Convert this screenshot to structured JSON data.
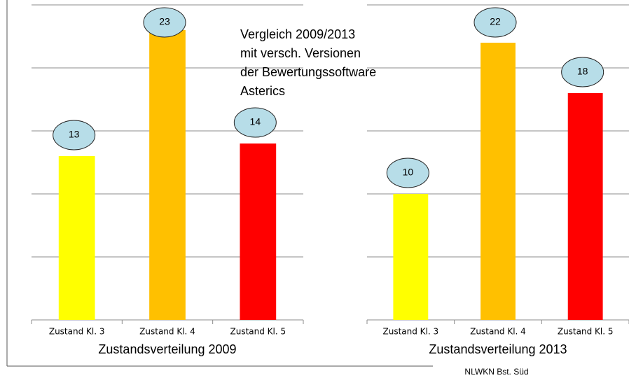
{
  "chart_data": [
    {
      "type": "bar",
      "title": "Zustandsverteilung 2009",
      "categories": [
        "Zustand Kl. 3",
        "Zustand Kl. 4",
        "Zustand Kl. 5"
      ],
      "values": [
        13,
        23,
        14
      ],
      "colors": [
        "#ffff00",
        "#ffc000",
        "#ff0000"
      ],
      "ylim": [
        0,
        25
      ],
      "yticks": [
        0,
        5,
        10,
        15,
        20,
        25
      ],
      "grid": true
    },
    {
      "type": "bar",
      "title": "Zustandsverteilung 2013",
      "categories": [
        "Zustand Kl. 3",
        "Zustand Kl. 4",
        "Zustand Kl. 5"
      ],
      "values": [
        10,
        22,
        18
      ],
      "colors": [
        "#ffff00",
        "#ffc000",
        "#ff0000"
      ],
      "ylim": [
        0,
        25
      ],
      "yticks": [
        0,
        5,
        10,
        15,
        20,
        25
      ],
      "grid": true
    }
  ],
  "annotation": [
    "Vergleich 2009/2013",
    "mit versch. Versionen",
    "der Bewertungssoftware",
    "Asterics"
  ],
  "footer": "NLWKN Bst. Süd"
}
